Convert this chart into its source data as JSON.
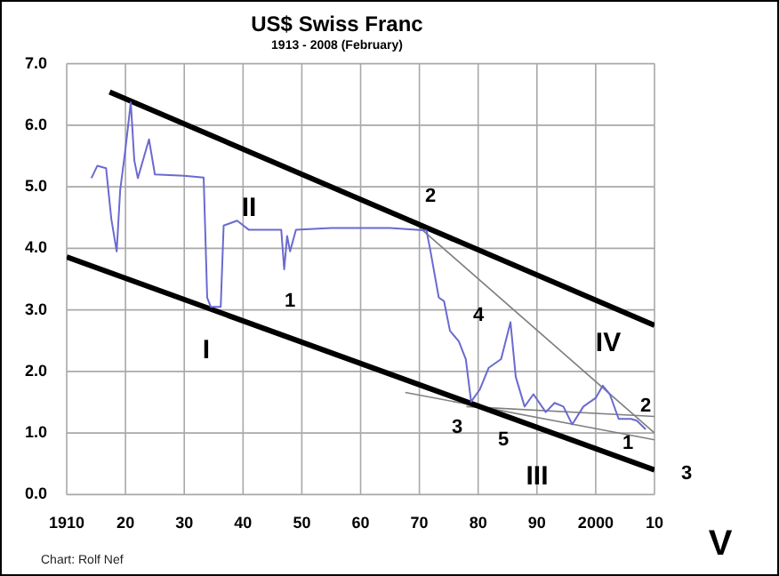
{
  "chart_data": {
    "type": "line",
    "title": "US$ Swiss Franc",
    "subtitle": "1913 - 2008 (February)",
    "xlim": [
      1910,
      2010
    ],
    "ylim": [
      0,
      7
    ],
    "xticks": [
      {
        "value": 1910,
        "label": "1910"
      },
      {
        "value": 1920,
        "label": "20"
      },
      {
        "value": 1930,
        "label": "30"
      },
      {
        "value": 1940,
        "label": "40"
      },
      {
        "value": 1950,
        "label": "50"
      },
      {
        "value": 1960,
        "label": "60"
      },
      {
        "value": 1970,
        "label": "70"
      },
      {
        "value": 1980,
        "label": "80"
      },
      {
        "value": 1990,
        "label": "90"
      },
      {
        "value": 2000,
        "label": "2000"
      },
      {
        "value": 2010,
        "label": "10"
      }
    ],
    "yticks": [
      {
        "value": 0,
        "label": "0.0"
      },
      {
        "value": 1,
        "label": "1.0"
      },
      {
        "value": 2,
        "label": "2.0"
      },
      {
        "value": 3,
        "label": "3.0"
      },
      {
        "value": 4,
        "label": "4.0"
      },
      {
        "value": 5,
        "label": "5.0"
      },
      {
        "value": 6,
        "label": "6.0"
      },
      {
        "value": 7,
        "label": "7.0"
      }
    ],
    "grid": true,
    "legend": false,
    "marker": "none",
    "series": [
      {
        "color": "#6a6ad0",
        "x": [
          1914.2,
          1915.2,
          1916.7,
          1917.6,
          1918.5,
          1919.1,
          1920,
          1920.9,
          1921.5,
          1922.1,
          1924,
          1925,
          1930,
          1933.3,
          1933.9,
          1934.5,
          1936.2,
          1936.7,
          1939,
          1941,
          1946.5,
          1947,
          1947.5,
          1948,
          1949,
          1955,
          1965,
          1971.2,
          1971.8,
          1973.3,
          1974.2,
          1975.2,
          1976.7,
          1977.9,
          1978.8,
          1980.3,
          1981.8,
          1983.9,
          1985.5,
          1986.4,
          1987.9,
          1989.4,
          1991.5,
          1993,
          1994.5,
          1996,
          1997.9,
          2000,
          2001.2,
          2002.4,
          2003.9,
          2006,
          2007,
          2008.5
        ],
        "values": [
          5.14,
          5.34,
          5.3,
          4.47,
          3.95,
          4.95,
          5.62,
          6.37,
          5.43,
          5.14,
          5.77,
          5.2,
          5.18,
          5.15,
          3.2,
          3.05,
          3.05,
          4.37,
          4.45,
          4.3,
          4.3,
          3.66,
          4.2,
          3.95,
          4.3,
          4.33,
          4.33,
          4.29,
          4.0,
          3.2,
          3.14,
          2.66,
          2.49,
          2.2,
          1.51,
          1.71,
          2.06,
          2.2,
          2.8,
          1.91,
          1.43,
          1.63,
          1.34,
          1.49,
          1.43,
          1.14,
          1.43,
          1.57,
          1.77,
          1.63,
          1.23,
          1.23,
          1.2,
          1.06
        ]
      },
      {
        "color": "#000000",
        "x": [
          1917.3,
          2010
        ],
        "values": [
          6.54,
          2.75
        ]
      },
      {
        "color": "#000000",
        "x": [
          1910,
          2010
        ],
        "values": [
          3.86,
          0.4
        ]
      },
      {
        "color": "#808080",
        "x": [
          1970,
          2010
        ],
        "values": [
          4.34,
          1.0
        ]
      },
      {
        "color": "#808080",
        "x": [
          1967.6,
          2010
        ],
        "values": [
          1.66,
          0.89
        ]
      },
      {
        "color": "#808080",
        "x": [
          1978,
          2010
        ],
        "values": [
          1.43,
          1.27
        ]
      }
    ],
    "annotations": [
      "I",
      "II",
      "1",
      "2",
      "4",
      "3",
      "5",
      "III",
      "IV",
      "1",
      "2",
      "3",
      "V",
      "Chart: Rolf Nef"
    ]
  }
}
